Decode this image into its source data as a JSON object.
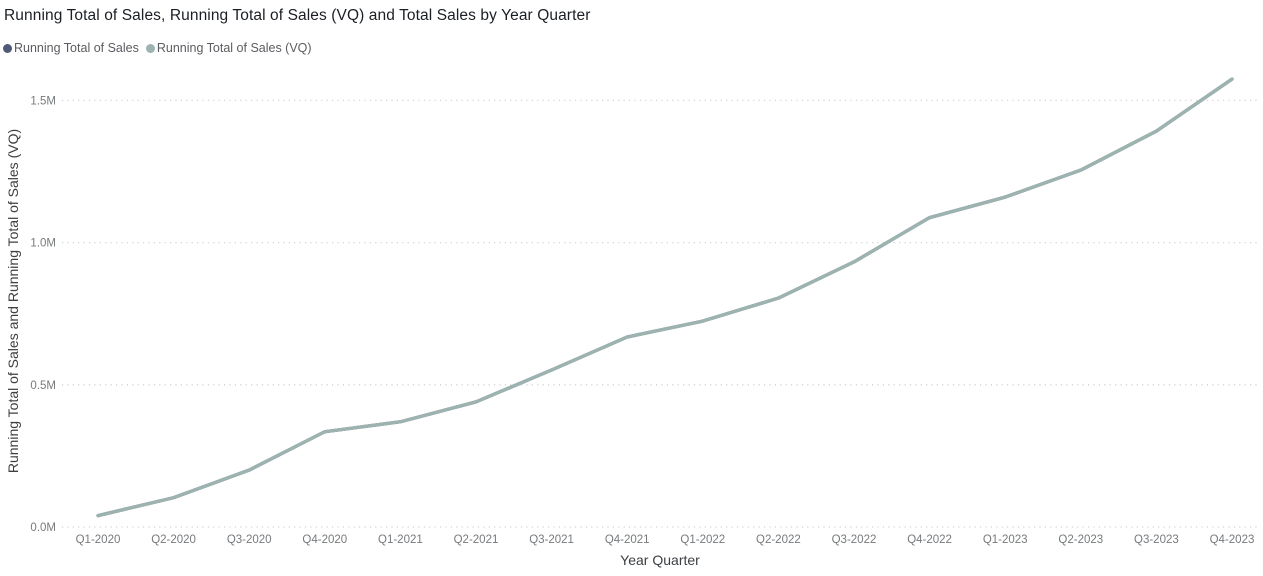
{
  "chart": {
    "title": "Running Total of Sales, Running Total of Sales (VQ) and Total Sales by Year Quarter",
    "legend": [
      {
        "label": "Running Total of Sales",
        "color": "#4f5b76"
      },
      {
        "label": "Running Total of Sales (VQ)",
        "color": "#9db3b0"
      }
    ],
    "x_axis_title": "Year Quarter",
    "y_axis_title": "Running Total of Sales and Running Total of Sales (VQ)"
  },
  "chart_data": {
    "type": "line",
    "title": "Running Total of Sales, Running Total of Sales (VQ) and Total Sales by Year Quarter",
    "xlabel": "Year Quarter",
    "ylabel": "Running Total of Sales and Running Total of Sales (VQ)",
    "categories": [
      "Q1-2020",
      "Q2-2020",
      "Q3-2020",
      "Q4-2020",
      "Q1-2021",
      "Q2-2021",
      "Q3-2021",
      "Q4-2021",
      "Q1-2022",
      "Q2-2022",
      "Q3-2022",
      "Q4-2022",
      "Q1-2023",
      "Q2-2023",
      "Q3-2023",
      "Q4-2023"
    ],
    "series": [
      {
        "name": "Running Total of Sales",
        "color": "#4f5b76",
        "values": [
          40000,
          103000,
          200000,
          335000,
          370000,
          440000,
          552000,
          668000,
          724000,
          805000,
          932000,
          1088000,
          1160000,
          1255000,
          1392000,
          1575000
        ]
      },
      {
        "name": "Running Total of Sales (VQ)",
        "color": "#9db3b0",
        "values": [
          40000,
          103000,
          200000,
          335000,
          370000,
          440000,
          552000,
          668000,
          724000,
          805000,
          932000,
          1088000,
          1160000,
          1255000,
          1392000,
          1575000
        ]
      }
    ],
    "y_ticks": [
      {
        "label": "0.0M",
        "value": 0
      },
      {
        "label": "0.5M",
        "value": 500000
      },
      {
        "label": "1.0M",
        "value": 1000000
      },
      {
        "label": "1.5M",
        "value": 1500000
      }
    ],
    "ylim": [
      0,
      1600000
    ],
    "grid": "horizontal-dotted",
    "legend_position": "top-left",
    "gridline_color": "#d2d2d2"
  }
}
